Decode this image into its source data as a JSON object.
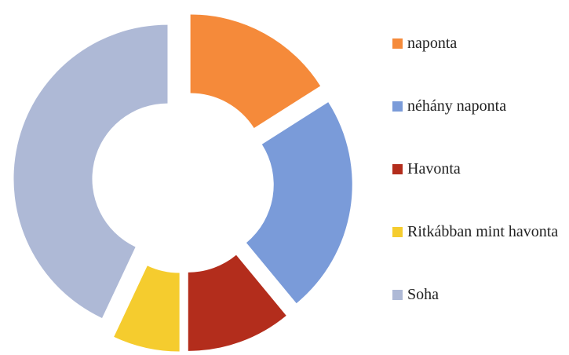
{
  "chart_data": {
    "type": "donut",
    "categories": [
      "naponta",
      "néhány naponta",
      "Havonta",
      "Ritkábban mint havonta",
      "Soha"
    ],
    "values": [
      16,
      23,
      11,
      7,
      43
    ],
    "colors": [
      "#f58a3a",
      "#7a9bd9",
      "#b32d1c",
      "#f5cc2e",
      "#aeb9d6"
    ],
    "legend": "right"
  }
}
